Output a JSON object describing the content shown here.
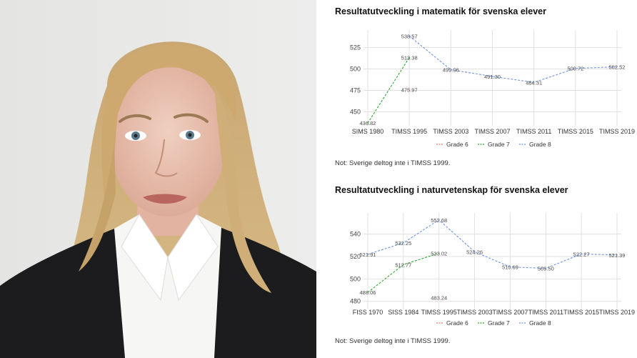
{
  "colors": {
    "grade6": "#e8766d",
    "grade7": "#2fa82f",
    "grade8": "#6f95e0",
    "grid": "#e1e1e1"
  },
  "charts": [
    {
      "title": "Resultatutveckling i matematik för svenska elever",
      "note": "Not: Sverige deltog inte i TIMSS 1999."
    },
    {
      "title": "Resultatutveckling i naturvetenskap för svenska elever",
      "note": "Not: Sverige deltog inte i TIMSS 1999."
    }
  ],
  "chart_data": [
    {
      "type": "line",
      "title": "Resultatutveckling i matematik för svenska elever",
      "categories": [
        "SIMS 1980",
        "TIMSS 1995",
        "TIMSS 2003",
        "TIMSS 2007",
        "TIMSS 2011",
        "TIMSS 2015",
        "TIMSS 2019"
      ],
      "yticks": [
        450,
        475,
        500,
        525
      ],
      "ylim": [
        437,
        543
      ],
      "grid": true,
      "legend": "bottom",
      "series": [
        {
          "name": "Grade 6",
          "color": "grade6",
          "points": [
            {
              "i": 1,
              "y": 475.97,
              "label": "475.97"
            }
          ]
        },
        {
          "name": "Grade 7",
          "color": "grade7",
          "points": [
            {
              "i": 0,
              "y": 436.82,
              "label": "436.82"
            },
            {
              "i": 1,
              "y": 513.38,
              "label": "513.38"
            }
          ]
        },
        {
          "name": "Grade 8",
          "color": "grade8",
          "points": [
            {
              "i": 1,
              "y": 538.57,
              "label": "538.57"
            },
            {
              "i": 2,
              "y": 499.06,
              "label": "499.06"
            },
            {
              "i": 3,
              "y": 491.3,
              "label": "491.30"
            },
            {
              "i": 4,
              "y": 484.31,
              "label": "484.31"
            },
            {
              "i": 5,
              "y": 500.72,
              "label": "500.72"
            },
            {
              "i": 6,
              "y": 502.52,
              "label": "502.52"
            }
          ]
        }
      ]
    },
    {
      "type": "line",
      "title": "Resultatutveckling i naturvetenskap för svenska elever",
      "categories": [
        "FISS 1970",
        "SISS 1984",
        "TIMSS 1995",
        "TIMSS 2003",
        "TIMSS 2007",
        "TIMSS 2011",
        "TIMSS 2015",
        "TIMSS 2019"
      ],
      "yticks": [
        480,
        500,
        520,
        540
      ],
      "ylim": [
        476,
        557
      ],
      "grid": true,
      "legend": "bottom",
      "series": [
        {
          "name": "Grade 6",
          "color": "grade6",
          "points": [
            {
              "i": 2,
              "y": 483.24,
              "label": "483.24"
            }
          ]
        },
        {
          "name": "Grade 7",
          "color": "grade7",
          "points": [
            {
              "i": 0,
              "y": 488.06,
              "label": "488.06"
            },
            {
              "i": 1,
              "y": 512.77,
              "label": "512.77"
            },
            {
              "i": 2,
              "y": 523.02,
              "label": "523.02"
            }
          ]
        },
        {
          "name": "Grade 8",
          "color": "grade8",
          "points": [
            {
              "i": 0,
              "y": 521.91,
              "label": "521.91"
            },
            {
              "i": 1,
              "y": 532.25,
              "label": "532.25"
            },
            {
              "i": 2,
              "y": 552.68,
              "label": "552.68"
            },
            {
              "i": 3,
              "y": 524.26,
              "label": "524.26"
            },
            {
              "i": 4,
              "y": 510.69,
              "label": "510.69"
            },
            {
              "i": 5,
              "y": 509.5,
              "label": "509.50"
            },
            {
              "i": 6,
              "y": 522.27,
              "label": "522.27"
            },
            {
              "i": 7,
              "y": 521.39,
              "label": "521.39"
            }
          ]
        }
      ]
    }
  ]
}
